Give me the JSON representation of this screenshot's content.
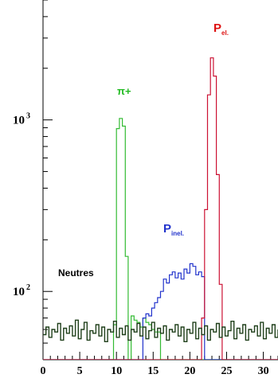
{
  "chart_data": {
    "type": "line",
    "log_y": true,
    "xlim": [
      0,
      32
    ],
    "ylim": [
      40,
      5000
    ],
    "x_ticks": [
      "0",
      "5",
      "10",
      "15",
      "20",
      "25",
      "30"
    ],
    "x_tick_values": [
      0,
      5,
      10,
      15,
      20,
      25,
      30
    ],
    "y_ticks": [
      {
        "base": "10",
        "exp": "2",
        "value": 100
      },
      {
        "base": "10",
        "exp": "3",
        "value": 1000
      }
    ],
    "annotations": {
      "pi_plus": "π+",
      "neutres": "Neutres",
      "p_inel_main": "P",
      "p_inel_sub": "inel.",
      "p_el_main": "P",
      "p_el_sub": "el."
    },
    "series": [
      {
        "name": "Neutres",
        "color": "#1f3f1a",
        "x": [
          0,
          0.4,
          0.8,
          1.2,
          1.6,
          2,
          2.4,
          2.8,
          3.2,
          3.6,
          4,
          4.4,
          4.8,
          5.2,
          5.6,
          6,
          6.4,
          6.8,
          7.2,
          7.6,
          8,
          8.4,
          8.8,
          9.2,
          9.6,
          10,
          10.4,
          10.8,
          11.2,
          11.6,
          12,
          12.4,
          12.8,
          13.2,
          13.6,
          14,
          14.4,
          14.8,
          15.2,
          15.6,
          16,
          16.4,
          16.8,
          17.2,
          17.6,
          18,
          18.4,
          18.8,
          19.2,
          19.6,
          20,
          20.4,
          20.8,
          21.2,
          21.6,
          22,
          22.4,
          22.8,
          23.2,
          23.6,
          24,
          24.4,
          24.8,
          25.2,
          25.6,
          26,
          26.4,
          26.8,
          27.2,
          27.6,
          28,
          28.4,
          28.8,
          29.2,
          29.6,
          30,
          30.4,
          30.8,
          31.2,
          31.6,
          32
        ],
        "values": [
          56,
          62,
          54,
          60,
          58,
          65,
          52,
          61,
          57,
          63,
          55,
          68,
          53,
          60,
          66,
          52,
          59,
          57,
          64,
          55,
          62,
          51,
          60,
          58,
          67,
          54,
          61,
          56,
          63,
          52,
          60,
          58,
          65,
          55,
          62,
          53,
          59,
          66,
          54,
          61,
          57,
          63,
          52,
          60,
          58,
          64,
          55,
          62,
          51,
          60,
          57,
          66,
          53,
          61,
          56,
          63,
          52,
          60,
          58,
          65,
          54,
          62,
          55,
          59,
          67,
          53,
          61,
          57,
          64,
          52,
          60,
          58,
          63,
          55,
          66,
          53,
          61,
          57,
          64,
          54,
          60
        ]
      },
      {
        "name": "π+",
        "color": "#33bb33",
        "x": [
          0,
          9.2,
          9.6,
          10,
          10.4,
          10.8,
          11.2,
          11.6,
          12,
          12.4,
          12.8,
          13.2,
          13.6,
          14,
          14.4,
          14.8,
          15.2,
          16,
          32
        ],
        "values": [
          0,
          0,
          64,
          890,
          1020,
          920,
          160,
          0,
          72,
          68,
          66,
          62,
          70,
          66,
          64,
          60,
          58,
          0,
          0
        ]
      },
      {
        "name": "P inel.",
        "color": "#2233cc",
        "x": [
          0,
          13.2,
          13.6,
          14,
          14.4,
          14.8,
          15.2,
          15.6,
          16,
          16.4,
          16.8,
          17.2,
          17.6,
          18,
          18.4,
          18.8,
          19.2,
          19.6,
          20,
          20.4,
          20.8,
          21.2,
          21.6,
          22,
          32
        ],
        "values": [
          0,
          0,
          70,
          74,
          72,
          80,
          86,
          92,
          100,
          118,
          112,
          125,
          130,
          120,
          128,
          118,
          135,
          128,
          145,
          140,
          125,
          130,
          122,
          0,
          0
        ]
      },
      {
        "name": "P el.",
        "color": "#cc1133",
        "x": [
          0,
          21.2,
          21.6,
          22,
          22.4,
          22.8,
          23.2,
          23.6,
          24,
          24.4,
          24.8,
          32
        ],
        "values": [
          0,
          0,
          70,
          300,
          1400,
          2300,
          1800,
          480,
          110,
          0,
          0,
          0
        ]
      }
    ]
  }
}
